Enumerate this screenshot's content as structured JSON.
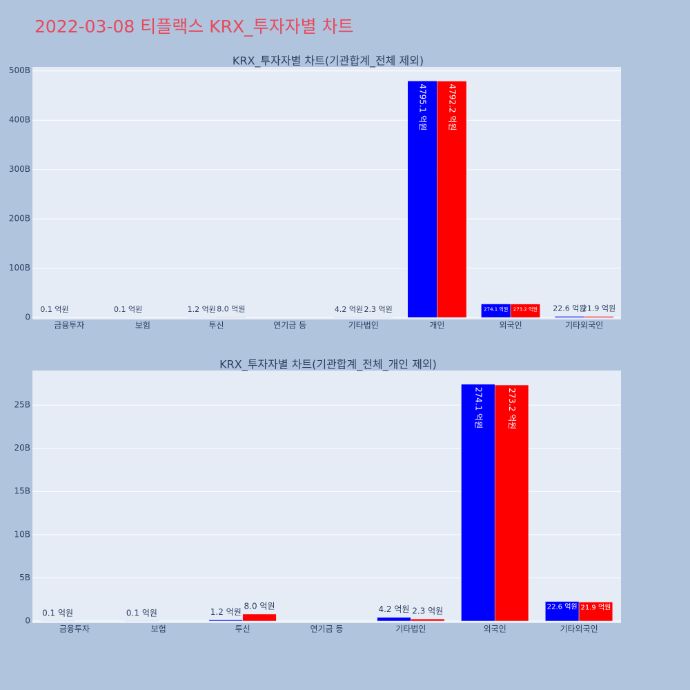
{
  "title": "2022-03-08 티플랙스 KRX_투자자별 차트",
  "chart_data": [
    {
      "type": "bar",
      "title": "KRX_투자자별 차트(기관합계_전체 제외)",
      "categories": [
        "금융투자",
        "보험",
        "투신",
        "연기금 등",
        "기타법인",
        "개인",
        "외국인",
        "기타외국인"
      ],
      "series": [
        {
          "color": "#0000ff",
          "values": [
            10000000,
            10000000,
            120000000,
            null,
            420000000,
            479510000000,
            27410000000,
            2260000000
          ],
          "value_labels": [
            "0.1 억원",
            "0.1 억원",
            "1.2 억원",
            null,
            "4.2 억원",
            "4795.1 억원",
            "274.1 억원",
            "22.6 억원"
          ]
        },
        {
          "color": "#ff0000",
          "values": [
            null,
            null,
            800000000,
            null,
            230000000,
            479220000000,
            27320000000,
            2190000000
          ],
          "value_labels": [
            null,
            null,
            "8.0 억원",
            null,
            "2.3 억원",
            "4792.2 억원",
            "273.2 억원",
            "21.9 억원"
          ]
        }
      ],
      "ylim": [
        -4000000000,
        508000000000
      ],
      "yticks": [
        0,
        {
          "value": 100000000000,
          "label": "100B"
        },
        {
          "value": 200000000000,
          "label": "200B"
        },
        {
          "value": 300000000000,
          "label": "300B"
        },
        {
          "value": 400000000000,
          "label": "400B"
        },
        {
          "value": 500000000000,
          "label": "500B"
        }
      ],
      "grid": true
    },
    {
      "type": "bar",
      "title": "KRX_투자자별 차트(기관합계_전체_개인 제외)",
      "categories": [
        "금융투자",
        "보험",
        "투신",
        "연기금 등",
        "기타법인",
        "외국인",
        "기타외국인"
      ],
      "series": [
        {
          "color": "#0000ff",
          "values": [
            10000000,
            10000000,
            120000000,
            null,
            420000000,
            27410000000,
            2260000000
          ],
          "value_labels": [
            "0.1 억원",
            "0.1 억원",
            "1.2 억원",
            null,
            "4.2 억원",
            "274.1 억원",
            "22.6 억원"
          ]
        },
        {
          "color": "#ff0000",
          "values": [
            null,
            null,
            800000000,
            null,
            230000000,
            27320000000,
            2190000000
          ],
          "value_labels": [
            null,
            null,
            "8.0 억원",
            null,
            "2.3 억원",
            "273.2 억원",
            "21.9 억원"
          ]
        }
      ],
      "ylim": [
        -240000000,
        29000000000
      ],
      "yticks": [
        0,
        {
          "value": 5000000000,
          "label": "5B"
        },
        {
          "value": 10000000000,
          "label": "10B"
        },
        {
          "value": 15000000000,
          "label": "15B"
        },
        {
          "value": 20000000000,
          "label": "20B"
        },
        {
          "value": 25000000000,
          "label": "25B"
        }
      ],
      "grid": true
    }
  ]
}
